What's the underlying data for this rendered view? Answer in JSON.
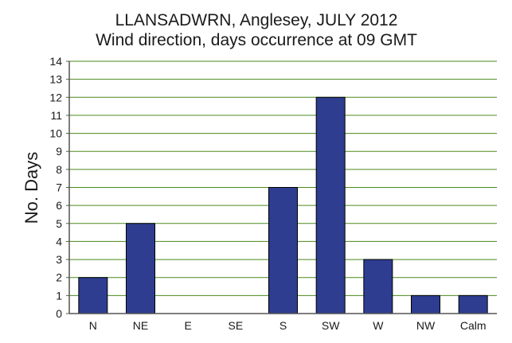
{
  "chart_data": {
    "type": "bar",
    "title": "LLANSADWRN, Anglesey, JULY 2012",
    "subtitle": "Wind direction, days occurrence at 09 GMT",
    "ylabel": "No. Days",
    "xlabel": "",
    "categories": [
      "N",
      "NE",
      "E",
      "SE",
      "S",
      "SW",
      "W",
      "NW",
      "Calm"
    ],
    "values": [
      2,
      5,
      0,
      0,
      7,
      12,
      3,
      1,
      1
    ],
    "ylim": [
      0,
      14
    ],
    "yticks": [
      "0",
      "1",
      "2",
      "3",
      "4",
      "5",
      "6",
      "7",
      "8",
      "9",
      "10",
      "11",
      "12",
      "13",
      "14"
    ],
    "grid": true,
    "legend": "none"
  },
  "colors": {
    "bar_fill": "#2e3d8f",
    "bar_stroke": "#000000",
    "gridline": "#4a8a1a",
    "axis": "#555555"
  }
}
